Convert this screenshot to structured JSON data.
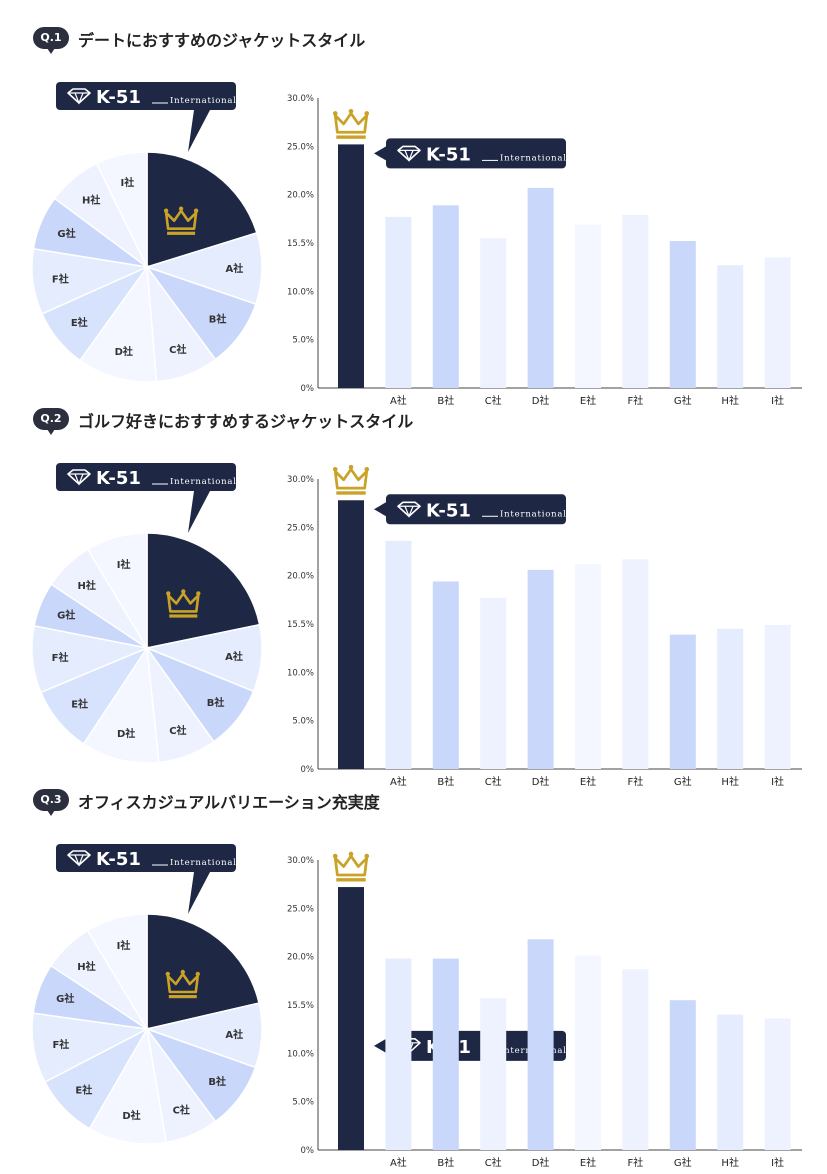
{
  "brand": {
    "name": "K-51",
    "suffix": "International"
  },
  "colors": {
    "winner": "#1e2744",
    "crown": "#c9a227",
    "pale1": "#e4ecfd",
    "pale2": "#c9d7fa",
    "pale3": "#edf2fe",
    "pale4": "#f4f7ff",
    "pale5": "#d7e2fc"
  },
  "sections": [
    {
      "badge": "Q.1",
      "title": "デートにおすすめのジャケットスタイル"
    },
    {
      "badge": "Q.2",
      "title": "ゴルフ好きにおすすめするジャケットスタイル"
    },
    {
      "badge": "Q.3",
      "title": "オフィスカジュアルバリエーション充実度"
    }
  ],
  "chart_data": [
    {
      "type": "bar",
      "categories": [
        "",
        "A社",
        "B社",
        "C社",
        "D社",
        "E社",
        "F社",
        "G社",
        "H社",
        "I社"
      ],
      "values": [
        25.2,
        17.7,
        18.9,
        15.5,
        20.7,
        16.9,
        17.9,
        15.2,
        12.7,
        13.5
      ],
      "yticks": [
        "0%",
        "5.0%",
        "10.0%",
        "15.5%",
        "20.0%",
        "25.0%",
        "30.0%"
      ],
      "ylim": [
        0,
        30
      ],
      "tooltip_position": "top",
      "pie": {
        "labels": [
          "A社",
          "B社",
          "C社",
          "D社",
          "E社",
          "F社",
          "G社",
          "H社",
          "I社"
        ],
        "values": [
          12.5,
          12,
          11,
          14,
          10.5,
          11.5,
          9.5,
          9.5,
          9
        ]
      }
    },
    {
      "type": "bar",
      "categories": [
        "",
        "A社",
        "B社",
        "C社",
        "D社",
        "E社",
        "F社",
        "G社",
        "H社",
        "I社"
      ],
      "values": [
        27.8,
        23.6,
        19.4,
        17.7,
        20.6,
        21.2,
        21.7,
        13.9,
        14.5,
        14.9
      ],
      "yticks": [
        "0%",
        "5.0%",
        "10.0%",
        "15.5%",
        "20.0%",
        "25.0%",
        "30.0%"
      ],
      "ylim": [
        0,
        30
      ],
      "tooltip_position": "top",
      "pie": {
        "labels": [
          "A社",
          "B社",
          "C社",
          "D社",
          "E社",
          "F社",
          "G社",
          "H社",
          "I社"
        ],
        "values": [
          12,
          11.5,
          10.5,
          14,
          12,
          12,
          8,
          9,
          11
        ]
      }
    },
    {
      "type": "bar",
      "categories": [
        "",
        "A社",
        "B社",
        "C社",
        "D社",
        "E社",
        "F社",
        "G社",
        "H社",
        "I社"
      ],
      "values": [
        27.2,
        19.8,
        19.8,
        15.7,
        21.8,
        20.1,
        18.7,
        15.5,
        14.0,
        13.6
      ],
      "yticks": [
        "0%",
        "5.0%",
        "10.0%",
        "15.5%",
        "20.0%",
        "25.0%",
        "30.0%"
      ],
      "ylim": [
        0,
        30
      ],
      "tooltip_position": "bottom",
      "pie": {
        "labels": [
          "A社",
          "B社",
          "C社",
          "D社",
          "E社",
          "F社",
          "G社",
          "H社",
          "I社"
        ],
        "values": [
          11.5,
          12,
          9.5,
          14,
          11.5,
          12.5,
          9,
          9,
          11
        ]
      }
    }
  ]
}
